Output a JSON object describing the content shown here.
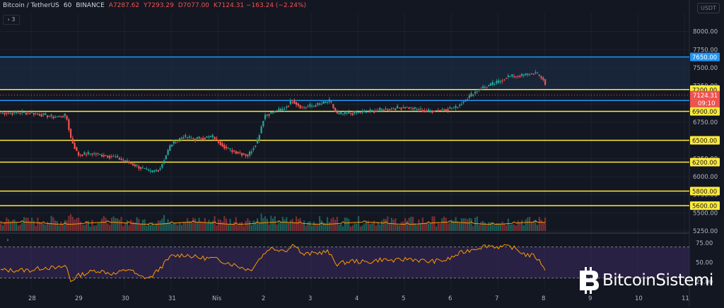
{
  "header": {
    "symbol": "Bitcoin / TetherUS",
    "interval": "60",
    "exchange": "BINANCE",
    "open": "A7287.62",
    "high": "Y7293.29",
    "low": "D7077.00",
    "close_change": "K7124.31 −163.24 (−2.24%)",
    "indicator_count": "3"
  },
  "currency": "USDT",
  "colors": {
    "background": "#131722",
    "up": "#26a69a",
    "down": "#ef5350",
    "support_line": "#ffeb3b",
    "resistance_line": "#2196f3",
    "rsi_line": "#ff9800",
    "rsi_band": "#3c2a5e"
  },
  "chart_data": [
    {
      "type": "candlestick",
      "title": "Bitcoin / TetherUS 60 BINANCE",
      "x_ticks": [
        "28",
        "29",
        "30",
        "31",
        "Nis",
        "2",
        "3",
        "4",
        "5",
        "6",
        "7",
        "8",
        "9",
        "10",
        "11"
      ],
      "y_ticks": [
        8000.0,
        7750.0,
        7500.0,
        7250.0,
        7000.0,
        6750.0,
        6500.0,
        6250.0,
        6000.0,
        5750.0,
        5500.0,
        5250.0
      ],
      "ylim": [
        5250,
        8250
      ],
      "grid": true,
      "last_price": 7124.31,
      "countdown": "09:10",
      "horizontal_levels": [
        {
          "value": 7650.0,
          "label": "7650.00",
          "color": "#2196f3"
        },
        {
          "value": 7200.0,
          "label": "7200.00",
          "color": "#ffeb3b"
        },
        {
          "value": 7050.0,
          "label": "7050.00",
          "color": "#2196f3"
        },
        {
          "value": 6900.0,
          "label": "6900.00",
          "color": "#ffeb3b"
        },
        {
          "value": 6500.0,
          "label": "6500.00",
          "color": "#ffeb3b"
        },
        {
          "value": 6200.0,
          "label": "6200.00",
          "color": "#ffeb3b"
        },
        {
          "value": 5800.0,
          "label": "5800.00",
          "color": "#ffeb3b"
        },
        {
          "value": 5600.0,
          "label": "5600.00",
          "color": "#ffeb3b"
        }
      ],
      "price_path": [
        {
          "d": 0.0,
          "p": 6880
        },
        {
          "d": 0.5,
          "p": 6820
        },
        {
          "d": 0.75,
          "p": 6840
        },
        {
          "d": 0.85,
          "p": 6530
        },
        {
          "d": 1.0,
          "p": 6300
        },
        {
          "d": 1.3,
          "p": 6320
        },
        {
          "d": 1.8,
          "p": 6270
        },
        {
          "d": 2.25,
          "p": 6150
        },
        {
          "d": 2.55,
          "p": 6060
        },
        {
          "d": 2.75,
          "p": 6100
        },
        {
          "d": 3.0,
          "p": 6450
        },
        {
          "d": 3.25,
          "p": 6550
        },
        {
          "d": 3.5,
          "p": 6520
        },
        {
          "d": 3.9,
          "p": 6550
        },
        {
          "d": 4.2,
          "p": 6380
        },
        {
          "d": 4.5,
          "p": 6320
        },
        {
          "d": 4.65,
          "p": 6290
        },
        {
          "d": 4.85,
          "p": 6500
        },
        {
          "d": 5.0,
          "p": 6850
        },
        {
          "d": 5.4,
          "p": 6930
        },
        {
          "d": 5.6,
          "p": 7050
        },
        {
          "d": 5.8,
          "p": 6950
        },
        {
          "d": 6.2,
          "p": 7000
        },
        {
          "d": 6.4,
          "p": 7040
        },
        {
          "d": 6.55,
          "p": 6860
        },
        {
          "d": 7.0,
          "p": 6880
        },
        {
          "d": 7.5,
          "p": 6920
        },
        {
          "d": 8.0,
          "p": 6960
        },
        {
          "d": 8.5,
          "p": 6900
        },
        {
          "d": 9.1,
          "p": 6950
        },
        {
          "d": 9.3,
          "p": 7060
        },
        {
          "d": 9.6,
          "p": 7210
        },
        {
          "d": 10.0,
          "p": 7300
        },
        {
          "d": 10.2,
          "p": 7380
        },
        {
          "d": 10.5,
          "p": 7390
        },
        {
          "d": 10.8,
          "p": 7430
        },
        {
          "d": 11.0,
          "p": 7330
        },
        {
          "d": 11.05,
          "p": 7124
        }
      ]
    },
    {
      "type": "line",
      "title": "RSI",
      "y_ticks": [
        75.0,
        50.0,
        25.0
      ],
      "ylim": [
        15,
        85
      ],
      "band": [
        30,
        70
      ],
      "series": [
        {
          "values": [
            {
              "d": 0.0,
              "v": 40
            },
            {
              "d": 0.3,
              "v": 44
            },
            {
              "d": 0.55,
              "v": 42
            },
            {
              "d": 0.75,
              "v": 46
            },
            {
              "d": 0.85,
              "v": 26
            },
            {
              "d": 1.0,
              "v": 33
            },
            {
              "d": 1.4,
              "v": 40
            },
            {
              "d": 1.8,
              "v": 35
            },
            {
              "d": 2.1,
              "v": 42
            },
            {
              "d": 2.3,
              "v": 32
            },
            {
              "d": 2.55,
              "v": 30
            },
            {
              "d": 2.8,
              "v": 45
            },
            {
              "d": 3.0,
              "v": 58
            },
            {
              "d": 3.3,
              "v": 60
            },
            {
              "d": 3.6,
              "v": 56
            },
            {
              "d": 3.9,
              "v": 55
            },
            {
              "d": 4.2,
              "v": 50
            },
            {
              "d": 4.5,
              "v": 44
            },
            {
              "d": 4.7,
              "v": 40
            },
            {
              "d": 4.9,
              "v": 55
            },
            {
              "d": 5.1,
              "v": 68
            },
            {
              "d": 5.5,
              "v": 66
            },
            {
              "d": 5.65,
              "v": 75
            },
            {
              "d": 5.8,
              "v": 60
            },
            {
              "d": 6.1,
              "v": 62
            },
            {
              "d": 6.35,
              "v": 64
            },
            {
              "d": 6.55,
              "v": 48
            },
            {
              "d": 6.9,
              "v": 52
            },
            {
              "d": 7.2,
              "v": 50
            },
            {
              "d": 7.5,
              "v": 54
            },
            {
              "d": 7.8,
              "v": 52
            },
            {
              "d": 8.1,
              "v": 55
            },
            {
              "d": 8.5,
              "v": 51
            },
            {
              "d": 8.9,
              "v": 53
            },
            {
              "d": 9.2,
              "v": 62
            },
            {
              "d": 9.5,
              "v": 68
            },
            {
              "d": 9.8,
              "v": 72
            },
            {
              "d": 10.0,
              "v": 70
            },
            {
              "d": 10.3,
              "v": 70
            },
            {
              "d": 10.6,
              "v": 60
            },
            {
              "d": 10.8,
              "v": 58
            },
            {
              "d": 11.0,
              "v": 44
            },
            {
              "d": 11.05,
              "v": 38
            }
          ]
        }
      ]
    }
  ],
  "watermark": "BitcoinSistemi"
}
